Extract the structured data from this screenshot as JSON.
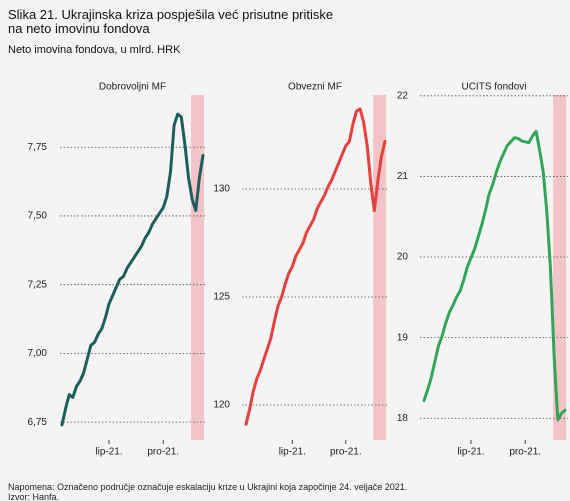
{
  "header": {
    "title": "Slika 21. Ukrajinska kriza pospješila već prisutne pritiske na neto imovinu fondova",
    "subtitle": "Neto imovina fondova, u mlrd. HRK"
  },
  "footer": {
    "note": "Napomena: Označeno područje označuje eskalaciju krize u Ukrajini koja započinje 24. veljače 2021.",
    "source": "Izvor: Hanfa."
  },
  "chart_data": [
    {
      "type": "line",
      "title": "Dobrovoljni MF",
      "color": "#1e5e5a",
      "grid": true,
      "categories": [
        null,
        null,
        null,
        null,
        null,
        null,
        null,
        null,
        null,
        null,
        null,
        null,
        null,
        "lip-21.",
        null,
        null,
        null,
        null,
        null,
        null,
        null,
        null,
        null,
        null,
        null,
        null,
        null,
        null,
        "pro-21.",
        null,
        null,
        null,
        null,
        null,
        null,
        null,
        null,
        null,
        null,
        null
      ],
      "values": [
        6.74,
        6.8,
        6.85,
        6.84,
        6.88,
        6.9,
        6.93,
        6.98,
        7.03,
        7.04,
        7.07,
        7.09,
        7.13,
        7.18,
        7.21,
        7.24,
        7.27,
        7.28,
        7.31,
        7.33,
        7.35,
        7.37,
        7.39,
        7.42,
        7.44,
        7.47,
        7.49,
        7.51,
        7.53,
        7.57,
        7.66,
        7.83,
        7.87,
        7.86,
        7.76,
        7.64,
        7.56,
        7.52,
        7.64,
        7.72
      ],
      "ylim": [
        6.685,
        7.94
      ],
      "yticks": [
        {
          "value": 6.75,
          "label": "6,75"
        },
        {
          "value": 7.0,
          "label": "7,00"
        },
        {
          "value": 7.25,
          "label": "7,25"
        },
        {
          "value": 7.5,
          "label": "7,50"
        },
        {
          "value": 7.75,
          "label": "7,75"
        }
      ]
    },
    {
      "type": "line",
      "title": "Obvezni MF",
      "color": "#e8403f",
      "grid": true,
      "categories": [
        null,
        null,
        null,
        null,
        null,
        null,
        null,
        null,
        null,
        null,
        null,
        null,
        null,
        "lip-21.",
        null,
        null,
        null,
        null,
        null,
        null,
        null,
        null,
        null,
        null,
        null,
        null,
        null,
        null,
        "pro-21.",
        null,
        null,
        null,
        null,
        null,
        null,
        null,
        null,
        null,
        null,
        null
      ],
      "values": [
        119.1,
        119.8,
        120.6,
        121.2,
        121.6,
        122.1,
        122.6,
        123.1,
        123.9,
        124.6,
        125.0,
        125.6,
        126.1,
        126.4,
        126.9,
        127.2,
        127.5,
        128.0,
        128.3,
        128.6,
        129.1,
        129.4,
        129.7,
        130.1,
        130.4,
        130.8,
        131.2,
        131.6,
        132.0,
        132.2,
        133.0,
        133.6,
        133.7,
        133.1,
        132.0,
        130.3,
        129.0,
        130.4,
        131.5,
        132.2
      ],
      "ylim": [
        118.38,
        134.35
      ],
      "yticks": [
        120,
        125,
        130
      ]
    },
    {
      "type": "line",
      "title": "UCITS fondovi",
      "color": "#33a55a",
      "grid": true,
      "categories": [
        null,
        null,
        null,
        null,
        null,
        null,
        null,
        null,
        null,
        null,
        null,
        null,
        null,
        "lip-21.",
        null,
        null,
        null,
        null,
        null,
        null,
        null,
        null,
        null,
        null,
        null,
        null,
        null,
        null,
        "pro-21.",
        null,
        null,
        null,
        null,
        null,
        null,
        null,
        null,
        null,
        null,
        null
      ],
      "values": [
        18.22,
        18.35,
        18.5,
        18.7,
        18.9,
        19.02,
        19.18,
        19.31,
        19.4,
        19.5,
        19.58,
        19.72,
        19.88,
        19.99,
        20.1,
        20.25,
        20.4,
        20.58,
        20.78,
        20.9,
        21.05,
        21.18,
        21.28,
        21.38,
        21.43,
        21.48,
        21.47,
        21.44,
        21.43,
        21.42,
        21.5,
        21.56,
        21.32,
        21.05,
        20.55,
        19.85,
        18.75,
        17.98,
        18.06,
        18.1
      ],
      "ylim": [
        17.73,
        22.01
      ],
      "yticks": [
        18,
        19,
        20,
        21,
        22
      ]
    }
  ]
}
